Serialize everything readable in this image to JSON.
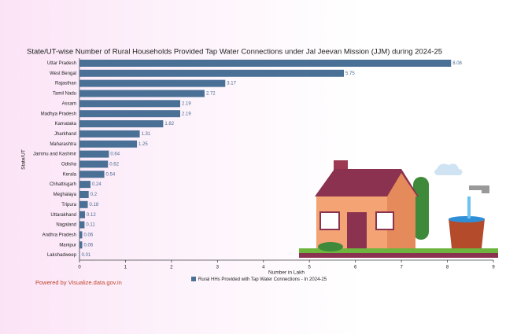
{
  "chart_data": {
    "type": "hbar",
    "title": "State/UT-wise Number of Rural Households Provided Tap Water Connections under Jal Jeevan Mission (JJM) during 2024-25",
    "categories": [
      "Uttar Pradesh",
      "West Bengal",
      "Rajasthan",
      "Tamil Nadu",
      "Assam",
      "Madhya Pradesh",
      "Karnataka",
      "Jharkhand",
      "Maharashtra",
      "Jammu and Kashmir",
      "Odisha",
      "Kerala",
      "Chhattisgarh",
      "Meghalaya",
      "Tripura",
      "Uttarakhand",
      "Nagaland",
      "Andhra Pradesh",
      "Manipur",
      "Lakshadweep"
    ],
    "series": [
      {
        "name": "Rural HHs Provided with Tap Water Connections - In 2024-25",
        "color": "#4a7096",
        "values": [
          8.08,
          5.75,
          3.17,
          2.72,
          2.19,
          2.19,
          1.82,
          1.31,
          1.25,
          0.64,
          0.62,
          0.54,
          0.24,
          0.2,
          0.18,
          0.12,
          0.11,
          0.06,
          0.06,
          0.01
        ]
      }
    ],
    "xlim": [
      0,
      9
    ],
    "xticks": [
      0,
      1,
      2,
      3,
      4,
      5,
      6,
      7,
      8,
      9
    ],
    "xlabel": "Number in Lakh",
    "ylabel": "State/UT",
    "legend": "bottom",
    "source": "Powered by Visualize.data.gov.in"
  }
}
